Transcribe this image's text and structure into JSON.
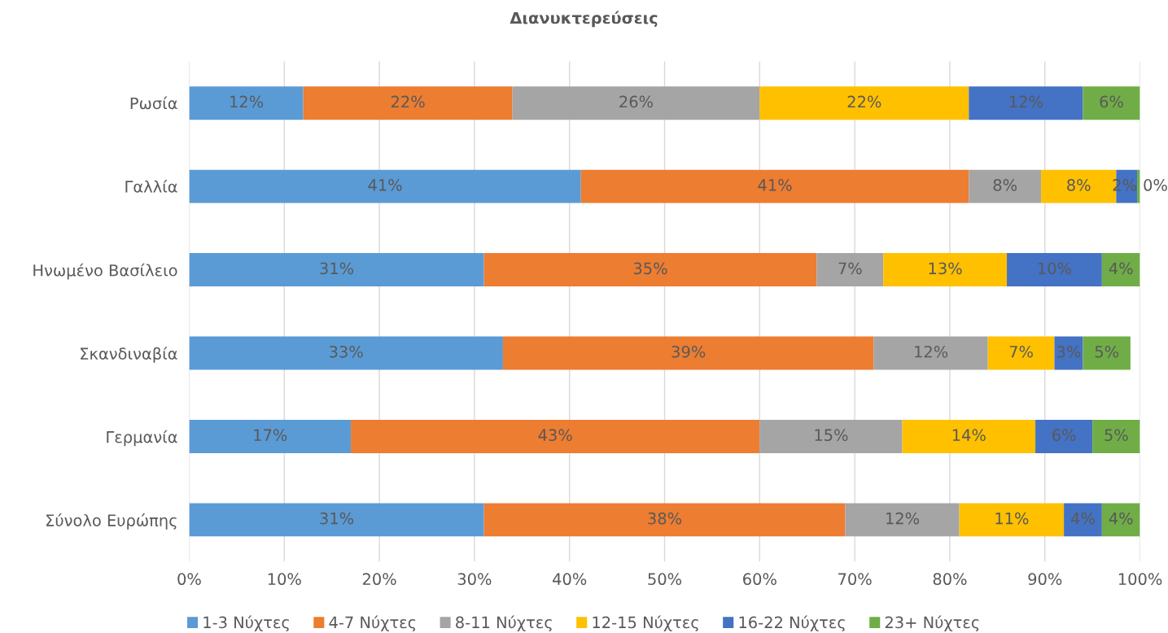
{
  "chart_data": {
    "type": "bar",
    "orientation": "horizontal",
    "stacked": true,
    "title": "Διανυκτερεύσεις",
    "categories": [
      "Ρωσία",
      "Γαλλία",
      "Ηνωμένο Βασίλειο",
      "Σκανδιναβία",
      "Γερμανία",
      "Σύνολο Ευρώπης"
    ],
    "series": [
      {
        "name": "1-3 Νύχτες",
        "color": "#5b9bd5",
        "values": [
          12,
          41.2,
          31,
          33,
          17,
          31
        ],
        "value_labels": [
          "12%",
          "41%",
          "31%",
          "33%",
          "17%",
          "31%"
        ]
      },
      {
        "name": "4-7 Νύχτες",
        "color": "#ed7d31",
        "values": [
          22,
          40.8,
          35,
          39,
          43,
          38
        ],
        "value_labels": [
          "22%",
          "41%",
          "35%",
          "39%",
          "43%",
          "38%"
        ]
      },
      {
        "name": "8-11 Νύχτες",
        "color": "#a5a5a5",
        "values": [
          26,
          7.6,
          7,
          12,
          15,
          12
        ],
        "value_labels": [
          "26%",
          "8%",
          "7%",
          "12%",
          "15%",
          "12%"
        ]
      },
      {
        "name": "12-15 Νύχτες",
        "color": "#ffc000",
        "values": [
          22,
          7.9,
          13,
          7,
          14,
          11
        ],
        "value_labels": [
          "22%",
          "8%",
          "13%",
          "7%",
          "14%",
          "11%"
        ]
      },
      {
        "name": "16-22 Νύχτες",
        "color": "#4472c4",
        "values": [
          12,
          2.2,
          10,
          3,
          6,
          4
        ],
        "value_labels": [
          "12%",
          "2%",
          "10%",
          "3%",
          "6%",
          "4%"
        ]
      },
      {
        "name": "23+ Νύχτες",
        "color": "#70ad47",
        "values": [
          6,
          0.3,
          4,
          5,
          5,
          4
        ],
        "value_labels": [
          "6%",
          "0%",
          "4%",
          "5%",
          "5%",
          "4%"
        ]
      }
    ],
    "xlim": [
      0,
      100
    ],
    "xticks": [
      {
        "value": 0,
        "label": "0%"
      },
      {
        "value": 10,
        "label": "10%"
      },
      {
        "value": 20,
        "label": "20%"
      },
      {
        "value": 30,
        "label": "30%"
      },
      {
        "value": 40,
        "label": "40%"
      },
      {
        "value": 50,
        "label": "50%"
      },
      {
        "value": 60,
        "label": "60%"
      },
      {
        "value": 70,
        "label": "70%"
      },
      {
        "value": 80,
        "label": "80%"
      },
      {
        "value": 90,
        "label": "90%"
      },
      {
        "value": 100,
        "label": "100%"
      }
    ],
    "grid": "x",
    "legend": "bottom"
  }
}
